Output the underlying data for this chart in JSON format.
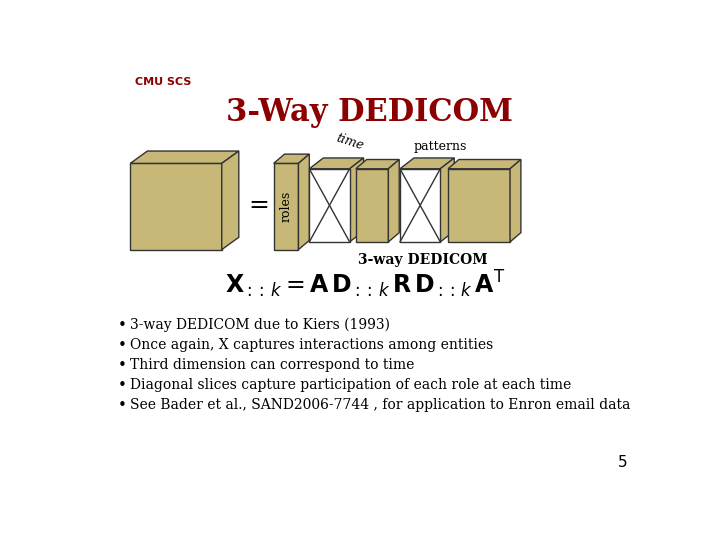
{
  "title": "3-Way DEDICOM",
  "title_color": "#8B0000",
  "title_fontsize": 22,
  "bg_color": "#FFFFFF",
  "cube_color": "#C8B878",
  "cube_edge_color": "#333333",
  "bullet_points": [
    "3-way DEDICOM due to Kiers (1993)",
    "Once again, X captures interactions among entities",
    "Third dimension can correspond to time",
    "Diagonal slices capture participation of each role at each time",
    "See Bader et al., SAND2006-7744 , for application to Enron email data"
  ],
  "label_roles": "roles",
  "label_time": "time",
  "label_patterns": "patterns",
  "label_3way": "3-way DEDICOM",
  "page_number": "5",
  "header_text": "CMU SCS"
}
